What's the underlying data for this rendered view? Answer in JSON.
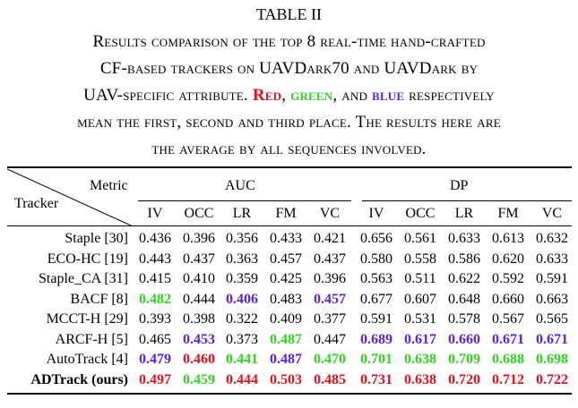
{
  "caption": {
    "table_label": "TABLE II",
    "line1": "Results comparison of the top 8 real-time hand-crafted",
    "line2": "CF-based trackers on UAVDark70 and UAVDark by",
    "line3_pre": "UAV-specific attribute.",
    "red_word": "Red",
    "comma1": ",",
    "green_word": "green",
    "comma2": ", and",
    "blue_word": "blue",
    "line3_post": "respectively",
    "line4": "mean the first, second and third place. The results here are",
    "line5": "the average by all sequences involved."
  },
  "header": {
    "metric_label": "Metric",
    "tracker_label": "Tracker",
    "group_auc": "AUC",
    "group_dp": "DP",
    "columns": [
      "IV",
      "OCC",
      "LR",
      "FM",
      "VC",
      "IV",
      "OCC",
      "LR",
      "FM",
      "VC"
    ]
  },
  "colors": {
    "first": "#e8101c",
    "second": "#2fd61f",
    "third": "#5a22e8"
  },
  "rows": [
    {
      "name": "Staple [30]",
      "values": [
        "0.436",
        "0.396",
        "0.356",
        "0.433",
        "0.421",
        "0.656",
        "0.561",
        "0.633",
        "0.613",
        "0.632"
      ],
      "ranks": [
        0,
        0,
        0,
        0,
        0,
        0,
        0,
        0,
        0,
        0
      ]
    },
    {
      "name": "ECO-HC [19]",
      "values": [
        "0.443",
        "0.437",
        "0.363",
        "0.457",
        "0.437",
        "0.580",
        "0.558",
        "0.586",
        "0.620",
        "0.633"
      ],
      "ranks": [
        0,
        0,
        0,
        0,
        0,
        0,
        0,
        0,
        0,
        0
      ]
    },
    {
      "name": "Staple_CA [31]",
      "values": [
        "0.415",
        "0.410",
        "0.359",
        "0.425",
        "0.396",
        "0.563",
        "0.511",
        "0.622",
        "0.592",
        "0.591"
      ],
      "ranks": [
        0,
        0,
        0,
        0,
        0,
        0,
        0,
        0,
        0,
        0
      ]
    },
    {
      "name": "BACF [8]",
      "values": [
        "0.482",
        "0.444",
        "0.406",
        "0.483",
        "0.457",
        "0.677",
        "0.607",
        "0.648",
        "0.660",
        "0.663"
      ],
      "ranks": [
        2,
        0,
        3,
        0,
        3,
        0,
        0,
        0,
        0,
        0
      ]
    },
    {
      "name": "MCCT-H [29]",
      "values": [
        "0.393",
        "0.398",
        "0.322",
        "0.409",
        "0.377",
        "0.591",
        "0.531",
        "0.578",
        "0.567",
        "0.565"
      ],
      "ranks": [
        0,
        0,
        0,
        0,
        0,
        0,
        0,
        0,
        0,
        0
      ]
    },
    {
      "name": "ARCF-H [5]",
      "values": [
        "0.465",
        "0.453",
        "0.373",
        "0.487",
        "0.447",
        "0.689",
        "0.617",
        "0.660",
        "0.671",
        "0.671"
      ],
      "ranks": [
        0,
        3,
        0,
        2,
        0,
        3,
        3,
        3,
        3,
        3
      ]
    },
    {
      "name": "AutoTrack [4]",
      "values": [
        "0.479",
        "0.460",
        "0.441",
        "0.487",
        "0.470",
        "0.701",
        "0.638",
        "0.709",
        "0.688",
        "0.698"
      ],
      "ranks": [
        3,
        1,
        2,
        3,
        2,
        2,
        2,
        2,
        2,
        2
      ]
    },
    {
      "name": "ADTrack (ours)",
      "values": [
        "0.497",
        "0.459",
        "0.444",
        "0.503",
        "0.485",
        "0.731",
        "0.638",
        "0.720",
        "0.712",
        "0.722"
      ],
      "ranks": [
        1,
        2,
        1,
        1,
        1,
        1,
        1,
        1,
        1,
        1
      ],
      "bold": true
    }
  ]
}
